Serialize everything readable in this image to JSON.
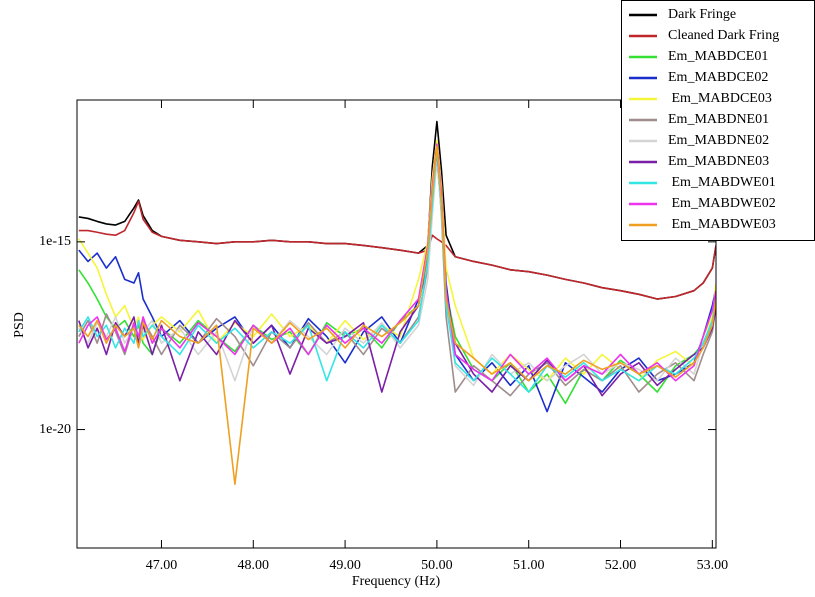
{
  "chart_data": {
    "type": "line",
    "xlabel": "Frequency (Hz)",
    "ylabel": "PSD",
    "log_y": true,
    "grid": false,
    "legend": "upper right",
    "xlim": [
      46.08,
      53.04
    ],
    "ylim": [
      7e-24,
      6e-12
    ],
    "xticks": [
      {
        "value": 47,
        "label": "47.00"
      },
      {
        "value": 48,
        "label": "48.00"
      },
      {
        "value": 49,
        "label": "49.00"
      },
      {
        "value": 50,
        "label": "50.00"
      },
      {
        "value": 51,
        "label": "51.00"
      },
      {
        "value": 52,
        "label": "52.00"
      },
      {
        "value": 53,
        "label": "53.00"
      }
    ],
    "yticks": [
      {
        "value": 1e-15,
        "label": "1e-15"
      },
      {
        "value": 1e-20,
        "label": "1e-20"
      }
    ],
    "x": [
      46.1,
      46.2,
      46.3,
      46.4,
      46.5,
      46.6,
      46.7,
      46.75,
      46.8,
      46.9,
      47.0,
      47.2,
      47.4,
      47.6,
      47.8,
      48.0,
      48.2,
      48.4,
      48.6,
      48.8,
      49.0,
      49.2,
      49.4,
      49.6,
      49.8,
      49.9,
      49.95,
      50.0,
      50.05,
      50.1,
      50.2,
      50.4,
      50.6,
      50.8,
      51.0,
      51.2,
      51.4,
      51.6,
      51.8,
      52.0,
      52.2,
      52.4,
      52.6,
      52.8,
      52.9,
      53.0,
      53.04
    ],
    "series": [
      {
        "name": "Dark Fringe",
        "color": "#000000",
        "values": [
          4.6e-15,
          4.2e-15,
          3.5e-15,
          3e-15,
          2.8e-15,
          3.5e-15,
          8e-15,
          1.3e-14,
          5e-15,
          2e-15,
          1.4e-15,
          1.1e-15,
          1e-15,
          9e-16,
          1e-15,
          1e-15,
          1.1e-15,
          1e-15,
          1e-15,
          9e-16,
          9e-16,
          8e-16,
          7e-16,
          6e-16,
          5e-16,
          8e-16,
          1e-13,
          1.6e-12,
          8e-14,
          1.5e-15,
          4e-16,
          3e-16,
          2.4e-16,
          1.8e-16,
          1.6e-16,
          1.3e-16,
          1e-16,
          8e-17,
          6e-17,
          5e-17,
          4e-17,
          3e-17,
          3.5e-17,
          5e-17,
          8e-17,
          2e-16,
          8e-16
        ]
      },
      {
        "name": "Cleaned Dark Fring",
        "color": "#c0272d",
        "values": [
          2e-15,
          2e-15,
          1.8e-15,
          1.6e-15,
          1.5e-15,
          2e-15,
          6e-15,
          1.2e-14,
          4e-15,
          1.8e-15,
          1.4e-15,
          1.1e-15,
          1e-15,
          9e-16,
          1e-15,
          1e-15,
          1.1e-15,
          1e-15,
          1e-15,
          9e-16,
          9e-16,
          8e-16,
          7e-16,
          6e-16,
          5e-16,
          6e-16,
          1.5e-15,
          1.2e-15,
          1e-15,
          8e-16,
          4e-16,
          3e-16,
          2.4e-16,
          1.8e-16,
          1.6e-16,
          1.3e-16,
          1e-16,
          8e-17,
          6e-17,
          5e-17,
          4e-17,
          3e-17,
          3.5e-17,
          5e-17,
          8e-17,
          2e-16,
          8e-16
        ]
      },
      {
        "name": "Em_MABDCE01",
        "color": "#33e033",
        "values": [
          1.8e-16,
          8e-17,
          3e-17,
          1e-17,
          5e-18,
          8e-18,
          3e-18,
          6e-18,
          2e-18,
          1e-18,
          5e-18,
          2e-18,
          8e-18,
          3e-18,
          1.2e-18,
          6e-18,
          2.5e-18,
          4e-18,
          1e-18,
          7e-18,
          3e-18,
          5e-18,
          1.5e-18,
          8e-18,
          2e-17,
          5e-16,
          2e-14,
          4e-13,
          1e-14,
          5e-17,
          3e-18,
          4e-19,
          2e-19,
          6e-19,
          1e-19,
          3e-19,
          5e-20,
          4e-19,
          2e-19,
          7e-19,
          3e-19,
          1e-19,
          5e-19,
          1e-18,
          2e-18,
          6e-18,
          4e-17
        ]
      },
      {
        "name": "Em_MABDCE02",
        "color": "#1a2ecc",
        "values": [
          6e-16,
          3e-16,
          5e-16,
          2e-16,
          4e-16,
          1e-16,
          8e-17,
          1.5e-16,
          3e-17,
          1e-17,
          3e-18,
          8e-18,
          2e-18,
          5e-18,
          1e-17,
          2e-18,
          6e-18,
          1.5e-18,
          9e-18,
          3e-18,
          6e-19,
          4e-18,
          1e-17,
          2e-18,
          3e-17,
          2e-16,
          3e-14,
          3e-13,
          2e-14,
          8e-17,
          1e-18,
          2e-19,
          6e-19,
          1.5e-19,
          5e-19,
          3e-20,
          6e-19,
          2.5e-19,
          1e-19,
          4e-19,
          8e-19,
          2e-19,
          3e-19,
          6e-19,
          3e-18,
          2e-17,
          6e-17
        ]
      },
      {
        "name": " Em_MABDCE03",
        "color": "#f5f53a",
        "values": [
          1.2e-15,
          5e-16,
          2e-16,
          4e-17,
          1e-17,
          2e-17,
          5e-18,
          1e-17,
          2.5e-18,
          6e-18,
          1e-17,
          4e-18,
          1.5e-17,
          2e-18,
          7e-18,
          3e-18,
          1.2e-17,
          3e-18,
          6e-18,
          2e-18,
          8e-18,
          2.5e-18,
          6e-18,
          3e-18,
          1e-16,
          1e-15,
          5e-14,
          5e-13,
          3e-14,
          2e-16,
          2e-17,
          8e-19,
          3e-19,
          1e-18,
          4e-19,
          2e-19,
          8e-19,
          3e-19,
          1e-18,
          4e-19,
          2e-19,
          7e-19,
          1.2e-18,
          5e-19,
          3e-18,
          1e-17,
          8e-17
        ]
      },
      {
        "name": "Em_MABDNE01",
        "color": "#a08c8c",
        "values": [
          3e-18,
          8e-18,
          2e-18,
          1.2e-17,
          4e-18,
          1e-18,
          6e-18,
          2e-18,
          8e-18,
          3e-18,
          1e-18,
          6e-18,
          2e-18,
          9e-18,
          3e-18,
          5e-19,
          4e-18,
          1.5e-18,
          7e-18,
          2e-18,
          4e-18,
          1e-18,
          5e-18,
          2e-18,
          1e-17,
          2e-16,
          8e-15,
          2e-13,
          5e-15,
          1e-17,
          1e-19,
          5e-19,
          2e-19,
          8e-20,
          3e-19,
          6e-19,
          1.5e-19,
          4e-19,
          2e-19,
          5e-19,
          1e-19,
          3e-19,
          6e-19,
          2e-19,
          1e-18,
          4e-18,
          2e-17
        ]
      },
      {
        "name": "Em_MABDNE02",
        "color": "#d4d4d4",
        "values": [
          5e-18,
          2e-18,
          7e-18,
          3e-18,
          1e-17,
          2e-18,
          5e-18,
          1.5e-18,
          4e-18,
          8e-18,
          2e-18,
          5e-18,
          1e-18,
          4e-18,
          2e-19,
          6e-18,
          2e-18,
          8e-18,
          3e-18,
          1e-18,
          5e-18,
          2e-18,
          7e-18,
          1.5e-18,
          6e-18,
          1e-16,
          5e-15,
          1.5e-13,
          6e-15,
          3e-17,
          5e-19,
          1.5e-19,
          1e-18,
          3e-19,
          6e-19,
          2e-19,
          5e-19,
          1e-18,
          3e-19,
          6e-19,
          4e-19,
          2e-19,
          8e-19,
          3e-19,
          2e-18,
          8e-18,
          3e-17
        ]
      },
      {
        "name": "Em_MABDNE03",
        "color": "#7a1fa8",
        "values": [
          8e-18,
          1.5e-18,
          5e-18,
          1e-18,
          7e-18,
          3e-18,
          1e-17,
          2e-18,
          6e-18,
          1e-18,
          6e-18,
          2e-19,
          4e-18,
          1e-18,
          8e-18,
          2e-18,
          6e-18,
          3e-19,
          5e-18,
          2e-18,
          3e-18,
          7e-18,
          1e-19,
          4e-18,
          2e-17,
          5e-16,
          2e-14,
          2.5e-13,
          1e-14,
          4e-17,
          2e-18,
          3e-19,
          1e-19,
          5e-19,
          2e-19,
          7e-19,
          2e-19,
          5e-19,
          8e-20,
          3e-19,
          6e-19,
          1.5e-19,
          4e-19,
          1e-18,
          1.5e-18,
          5e-18,
          2e-17
        ]
      },
      {
        "name": " Em_MABDWE01",
        "color": "#33e5e5",
        "values": [
          4e-18,
          1e-17,
          3e-18,
          6e-18,
          1.5e-18,
          5e-18,
          2e-18,
          8e-18,
          3e-18,
          6e-18,
          3e-18,
          1e-18,
          6e-18,
          2e-18,
          5e-18,
          1.5e-18,
          4e-18,
          2e-18,
          6e-18,
          2e-19,
          4e-18,
          1.5e-18,
          6e-18,
          2e-18,
          8e-18,
          3e-16,
          1e-14,
          3e-13,
          8e-15,
          2e-17,
          6e-19,
          2e-19,
          8e-19,
          3e-19,
          1e-19,
          5e-19,
          2.5e-19,
          6e-19,
          2e-19,
          4e-19,
          2e-19,
          5e-19,
          3e-19,
          8e-19,
          2e-18,
          8e-18,
          4e-17
        ]
      },
      {
        "name": " Em_MABDWE02",
        "color": "#ee33ee",
        "values": [
          2e-18,
          6e-18,
          1e-17,
          2.5e-18,
          5e-18,
          1.2e-18,
          7e-18,
          3e-18,
          1e-17,
          2e-18,
          5e-18,
          1.5e-18,
          7e-18,
          3e-18,
          1e-18,
          6e-18,
          2e-18,
          5e-18,
          1e-18,
          6e-18,
          2e-18,
          5e-18,
          2e-18,
          8e-18,
          3e-17,
          8e-16,
          3e-14,
          4e-13,
          2e-14,
          5e-17,
          1e-18,
          4e-19,
          2e-19,
          1e-18,
          3e-19,
          8e-19,
          2e-19,
          5e-19,
          3e-19,
          1e-18,
          3e-19,
          6e-19,
          2e-19,
          5e-19,
          3e-18,
          1.5e-17,
          5e-17
        ]
      },
      {
        "name": " Em_MABDWE03",
        "color": "#f0a020",
        "values": [
          6e-18,
          3e-18,
          8e-18,
          2e-18,
          6e-18,
          3e-18,
          5e-18,
          1.5e-18,
          7e-18,
          2.5e-18,
          8e-18,
          3e-18,
          2e-18,
          6e-18,
          3.5e-22,
          5e-18,
          2e-18,
          7e-18,
          2.5e-18,
          5e-18,
          1.5e-18,
          6e-18,
          3e-18,
          7e-18,
          2e-17,
          6e-16,
          2e-14,
          3.5e-13,
          1.2e-14,
          3e-17,
          2e-18,
          8e-19,
          3e-19,
          6e-19,
          2e-19,
          5e-19,
          3e-19,
          7e-19,
          4e-19,
          6e-19,
          3e-19,
          5e-19,
          2.5e-19,
          6e-19,
          1.5e-18,
          6e-18,
          3e-17
        ]
      }
    ]
  }
}
